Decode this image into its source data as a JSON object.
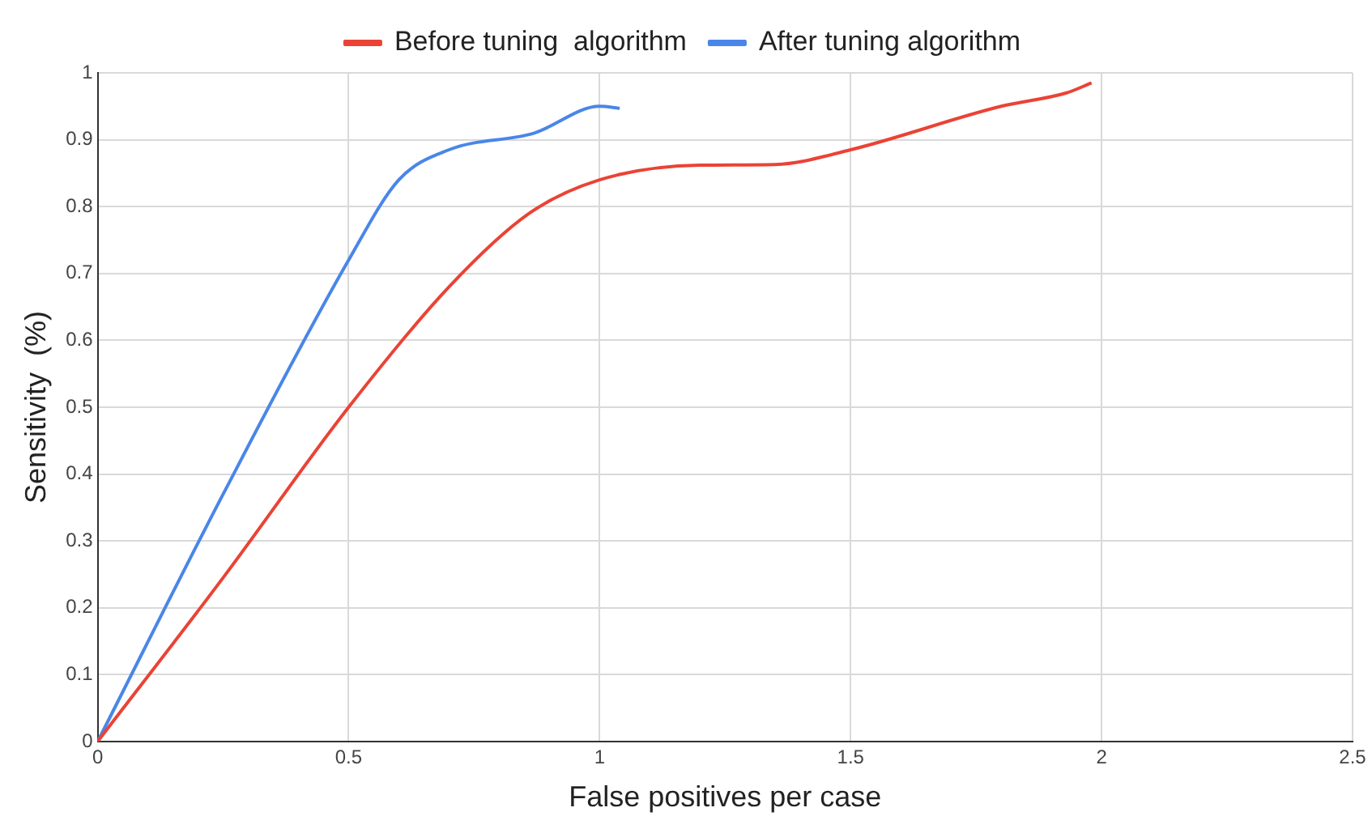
{
  "chart_data": {
    "type": "line",
    "xlabel": "False positives per case",
    "ylabel": "Sensitivity  (%)",
    "xlim": [
      0,
      2.5
    ],
    "xticks": [
      0,
      0.5,
      1,
      1.5,
      2,
      2.5
    ],
    "ylim": [
      0,
      1
    ],
    "yticks": [
      0,
      0.1,
      0.2,
      0.3,
      0.4,
      0.5,
      0.6,
      0.7,
      0.8,
      0.9,
      1
    ],
    "grid": true,
    "legend": "top",
    "marker": "none",
    "line_style": "solid",
    "series": [
      {
        "name": "Before tuning  algorithm",
        "color": "#ea4335",
        "x": [
          0,
          0.25,
          0.5,
          0.7,
          0.86,
          1,
          1.2,
          1.35,
          1.5,
          1.8,
          1.93,
          1.98
        ],
        "values": [
          0,
          0.245,
          0.5,
          0.68,
          0.79,
          0.84,
          0.862,
          0.863,
          0.885,
          0.95,
          0.97,
          0.985
        ]
      },
      {
        "name": "After tuning algorithm",
        "color": "#4a86e8",
        "x": [
          0,
          0.25,
          0.5,
          0.6,
          0.7,
          0.87,
          1,
          1.04
        ],
        "values": [
          0,
          0.37,
          0.72,
          0.84,
          0.885,
          0.91,
          0.95,
          0.947
        ]
      }
    ]
  }
}
